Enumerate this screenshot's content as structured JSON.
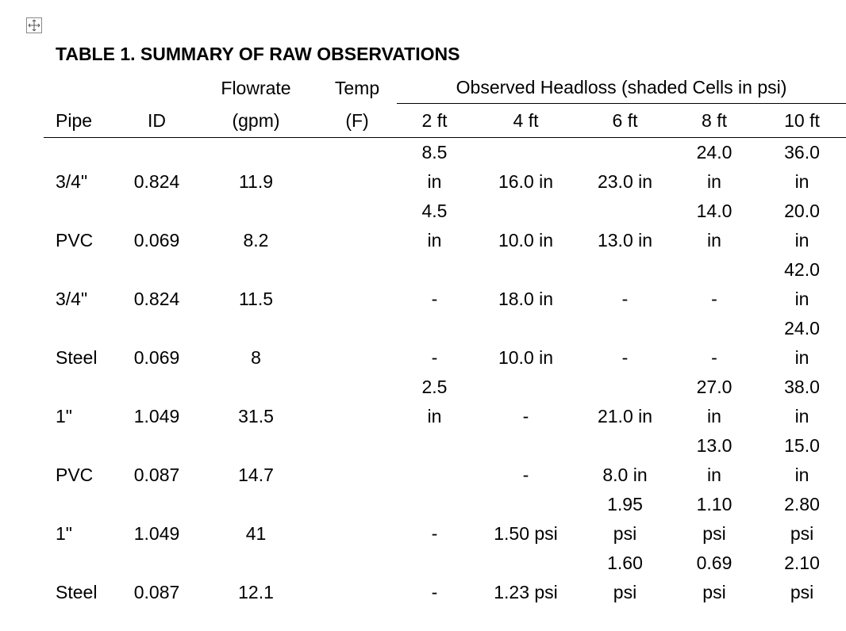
{
  "title": "TABLE 1. SUMMARY OF RAW OBSERVATIONS",
  "table": {
    "header_top": {
      "flowrate": "Flowrate",
      "temp": "Temp",
      "headloss": "Observed Headloss (shaded Cells in psi)"
    },
    "columns": [
      "Pipe",
      "ID",
      "(gpm)",
      "(F)",
      "2 ft",
      "4 ft",
      "6 ft",
      "8 ft",
      "10 ft"
    ],
    "rows": [
      [
        "3/4\"",
        "0.824",
        "11.9",
        null,
        "8.5 in",
        "16.0 in",
        "23.0 in",
        "24.0 in",
        "36.0 in"
      ],
      [
        "PVC",
        "0.069",
        "8.2",
        null,
        "4.5 in",
        "10.0 in",
        "13.0 in",
        "14.0 in",
        "20.0 in"
      ],
      [
        "3/4\"",
        "0.824",
        "11.5",
        null,
        "-",
        "18.0 in",
        "-",
        "-",
        "42.0 in"
      ],
      [
        "Steel",
        "0.069",
        "8",
        null,
        "-",
        "10.0 in",
        "-",
        "-",
        "24.0 in"
      ],
      [
        "1\"",
        "1.049",
        "31.5",
        null,
        "2.5 in",
        "-",
        "21.0 in",
        "27.0 in",
        "38.0 in"
      ],
      [
        "PVC",
        "0.087",
        "14.7",
        null,
        null,
        "-",
        "8.0 in",
        "13.0 in",
        "15.0 in"
      ],
      [
        "1\"",
        "1.049",
        "41",
        null,
        "-",
        "1.50 psi",
        "1.95 psi",
        "1.10 psi",
        "2.80 psi"
      ],
      [
        "Steel",
        "0.087",
        "12.1",
        null,
        "-",
        "1.23 psi",
        "1.60 psi",
        "0.69 psi",
        "2.10 psi"
      ]
    ]
  }
}
